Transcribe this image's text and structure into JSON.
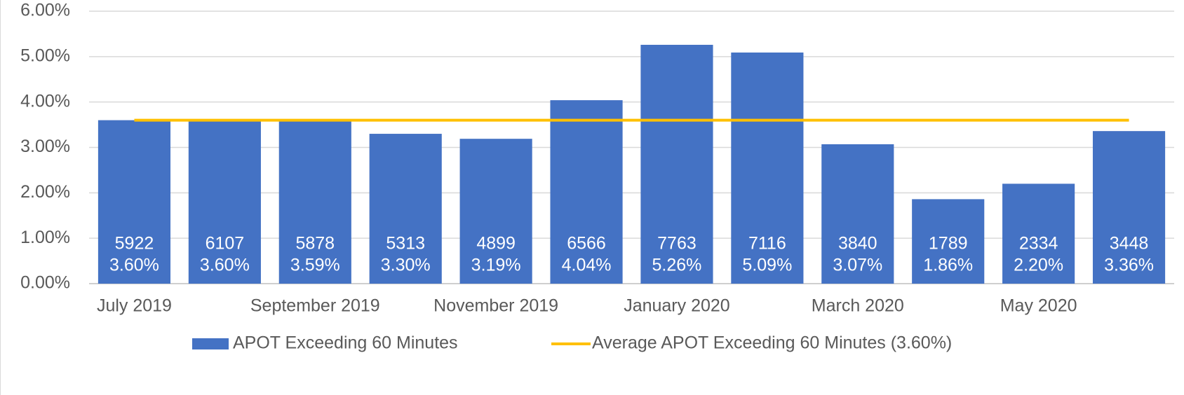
{
  "chart_data": {
    "type": "bar",
    "categories": [
      "July 2019",
      null,
      "September 2019",
      null,
      "November 2019",
      null,
      "January 2020",
      null,
      "March 2020",
      null,
      "May 2020",
      null
    ],
    "series": [
      {
        "name": "APOT Exceeding 60 Minutes",
        "type": "bar",
        "color": "#4472c4",
        "values": [
          3.6,
          3.6,
          3.59,
          3.3,
          3.19,
          4.04,
          5.26,
          5.09,
          3.07,
          1.86,
          2.2,
          3.36
        ],
        "value_labels": [
          "3.60%",
          "3.60%",
          "3.59%",
          "3.30%",
          "3.19%",
          "4.04%",
          "5.26%",
          "5.09%",
          "3.07%",
          "1.86%",
          "2.20%",
          "3.36%"
        ],
        "counts": [
          5922,
          6107,
          5878,
          5313,
          4899,
          6566,
          7763,
          7116,
          3840,
          1789,
          2334,
          3448
        ]
      },
      {
        "name": "Average APOT Exceeding 60 Minutes (3.60%)",
        "type": "line",
        "color": "#ffc000",
        "values": [
          3.6,
          3.6,
          3.6,
          3.6,
          3.6,
          3.6,
          3.6,
          3.6,
          3.6,
          3.6,
          3.6,
          3.6
        ]
      }
    ],
    "ylim": [
      0,
      6
    ],
    "yticks": [
      {
        "value": 0,
        "label": "0.00%"
      },
      {
        "value": 1,
        "label": "1.00%"
      },
      {
        "value": 2,
        "label": "2.00%"
      },
      {
        "value": 3,
        "label": "3.00%"
      },
      {
        "value": 4,
        "label": "4.00%"
      },
      {
        "value": 5,
        "label": "5.00%"
      },
      {
        "value": 6,
        "label": "6.00%"
      }
    ],
    "grid": true,
    "legend": "bottom"
  }
}
